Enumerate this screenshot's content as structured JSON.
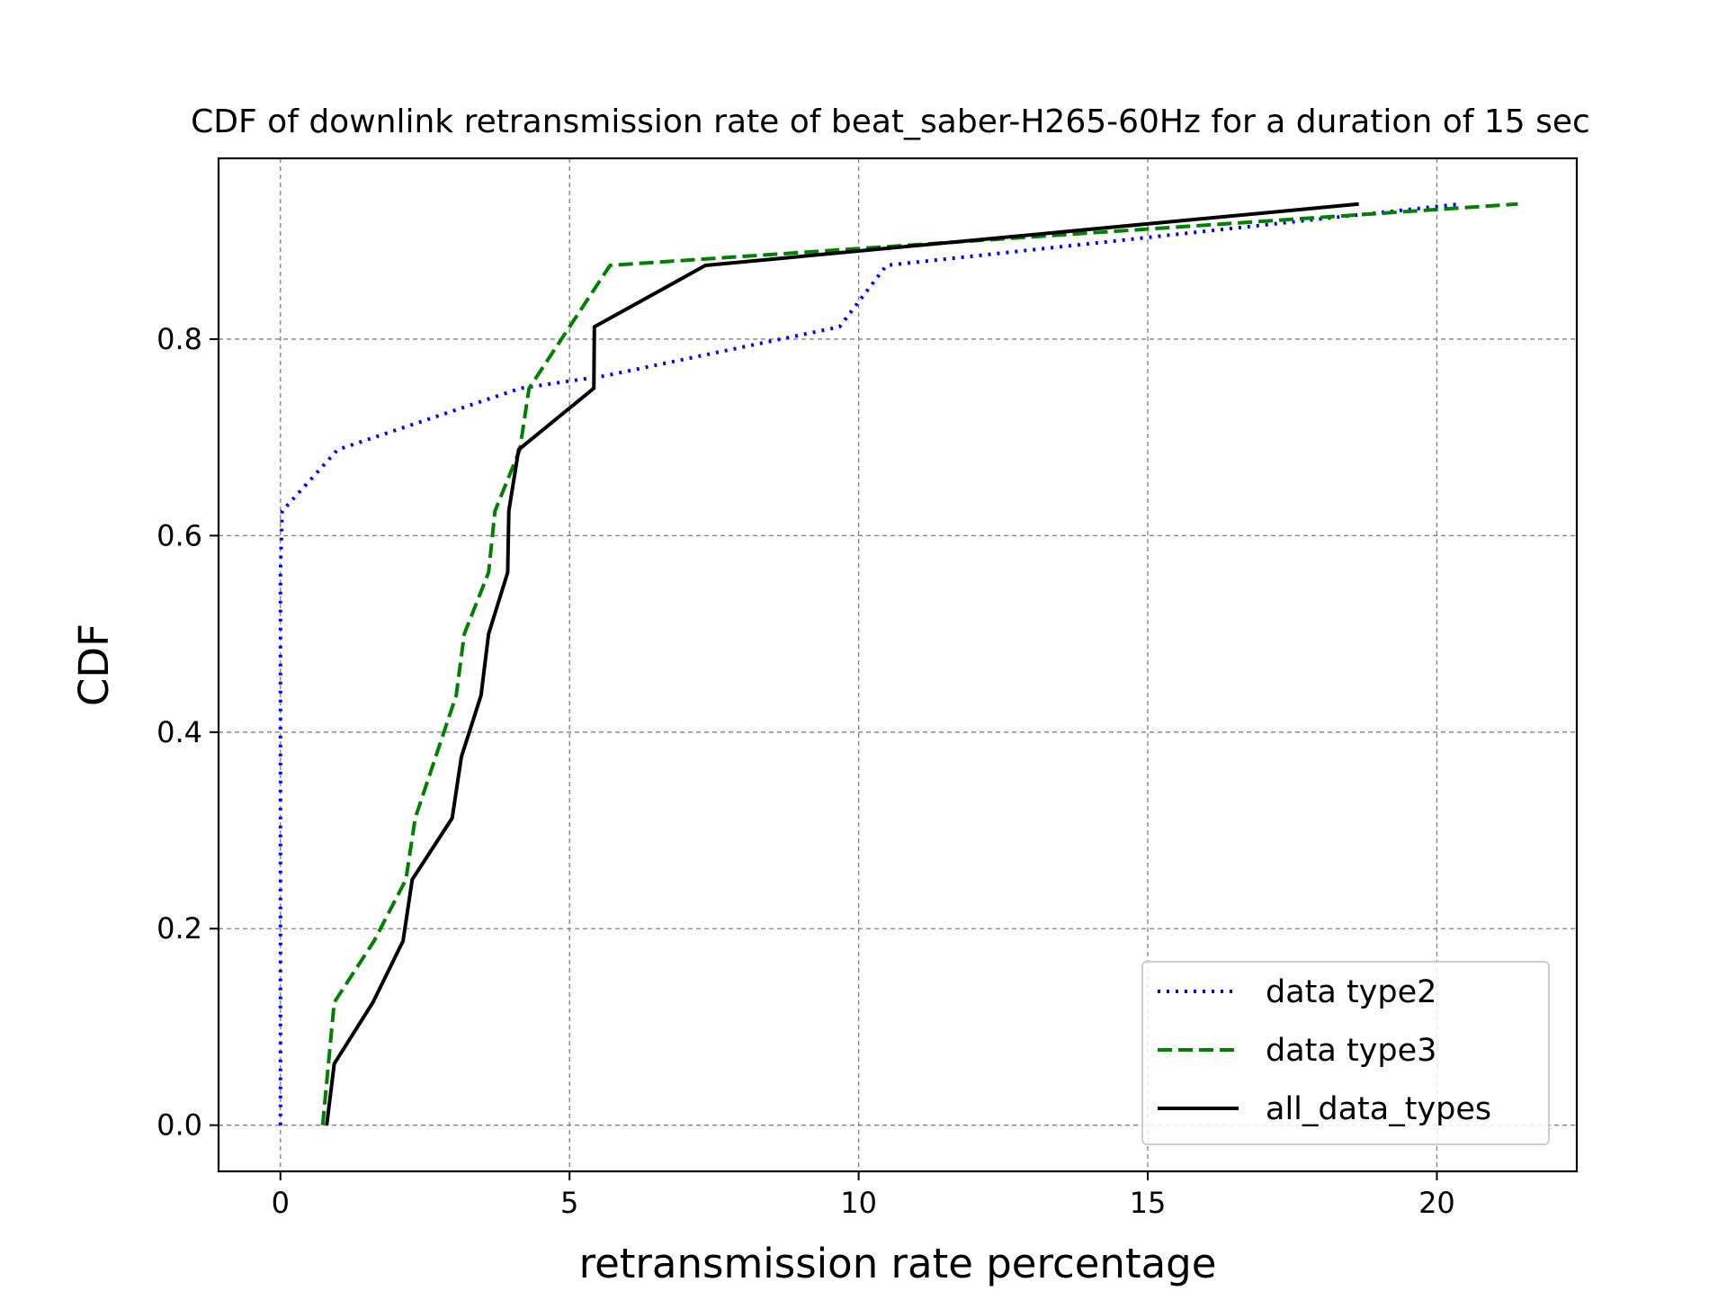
{
  "chart_data": {
    "type": "line",
    "title": "CDF of downlink retransmission rate of beat_saber-H265-60Hz for a duration of 15 sec",
    "xlabel": "retransmission rate percentage",
    "ylabel": "CDF",
    "xlim": [
      -1.07,
      22.42
    ],
    "ylim": [
      -0.047,
      0.984
    ],
    "xticks": [
      0,
      5,
      10,
      15,
      20
    ],
    "yticks": [
      0.0,
      0.2,
      0.4,
      0.6,
      0.8
    ],
    "xtick_labels": [
      "0",
      "5",
      "10",
      "15",
      "20"
    ],
    "ytick_labels": [
      "0.0",
      "0.2",
      "0.4",
      "0.6",
      "0.8"
    ],
    "grid": true,
    "legend_position": "lower-right",
    "series": [
      {
        "name": "data type2",
        "color": "#0000ff",
        "style": "dotted",
        "x": [
          0,
          0,
          0,
          0,
          0,
          0,
          0,
          0,
          0,
          0,
          0.03,
          0.99,
          4.15,
          5.6,
          9.67,
          10.48,
          20.4
        ],
        "y": [
          0.0,
          0.0625,
          0.125,
          0.1875,
          0.25,
          0.3125,
          0.375,
          0.4375,
          0.5,
          0.5625,
          0.625,
          0.6875,
          0.75,
          0.7625,
          0.8125,
          0.875,
          0.9375
        ]
      },
      {
        "name": "data type3",
        "color": "#008000",
        "style": "dashed",
        "x": [
          0.73,
          0.93,
          1.62,
          2.17,
          2.33,
          3.04,
          3.18,
          3.6,
          3.71,
          4.14,
          4.3,
          5.7,
          21.4
        ],
        "y": [
          0.0,
          0.125,
          0.1875,
          0.25,
          0.3125,
          0.4375,
          0.5,
          0.5625,
          0.625,
          0.6875,
          0.75,
          0.875,
          0.9375
        ]
      },
      {
        "name": "all_data_types",
        "color": "#000000",
        "style": "solid",
        "x": [
          0.8,
          0.93,
          1.6,
          2.12,
          2.28,
          2.97,
          3.13,
          3.47,
          3.6,
          3.93,
          3.95,
          4.12,
          5.42,
          5.43,
          7.35,
          18.65
        ],
        "y": [
          0.0,
          0.0625,
          0.125,
          0.1875,
          0.25,
          0.3125,
          0.375,
          0.4375,
          0.5,
          0.5625,
          0.625,
          0.6875,
          0.75,
          0.8125,
          0.875,
          0.9375
        ]
      }
    ]
  }
}
